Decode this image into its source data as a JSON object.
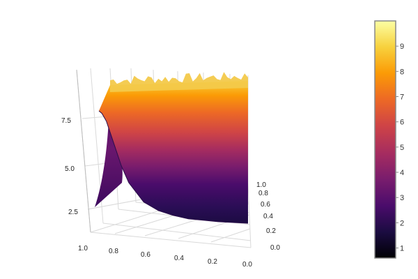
{
  "chart_data": {
    "type": "surface",
    "title": "",
    "x_axis": {
      "label": "",
      "range": [
        0,
        1
      ],
      "ticks": [
        "0.0",
        "0.2",
        "0.4",
        "0.6",
        "0.8",
        "1.0"
      ]
    },
    "y_axis": {
      "label": "",
      "range": [
        0,
        1
      ],
      "ticks": [
        "0.0",
        "0.2",
        "0.4",
        "0.6",
        "0.8",
        "1.0"
      ]
    },
    "z_axis": {
      "label": "",
      "range": [
        1,
        10
      ],
      "ticks": [
        "2.5",
        "5.0",
        "7.5"
      ]
    },
    "surface_profile": {
      "x": [
        0.0,
        0.02,
        0.05,
        0.1,
        0.15,
        0.2,
        0.3,
        0.4,
        0.5,
        0.6,
        0.7,
        0.8,
        0.9,
        0.95,
        1.0
      ],
      "z": [
        10.0,
        9.8,
        9.2,
        7.5,
        5.8,
        4.5,
        3.0,
        2.3,
        1.9,
        1.6,
        1.45,
        1.3,
        1.2,
        1.15,
        1.1
      ]
    },
    "colorbar": {
      "colorscale": "Inferno",
      "range": [
        0.6,
        10
      ],
      "ticks": [
        "1",
        "2",
        "3",
        "4",
        "5",
        "6",
        "7",
        "8",
        "9"
      ],
      "colors": [
        "#000004",
        "#1b0c41",
        "#4a0c6b",
        "#781c6d",
        "#a52c60",
        "#cf4446",
        "#ed6925",
        "#fb9b06",
        "#f7d13d",
        "#fcffa4"
      ]
    },
    "grid": true,
    "legend": "colorbar-right"
  }
}
